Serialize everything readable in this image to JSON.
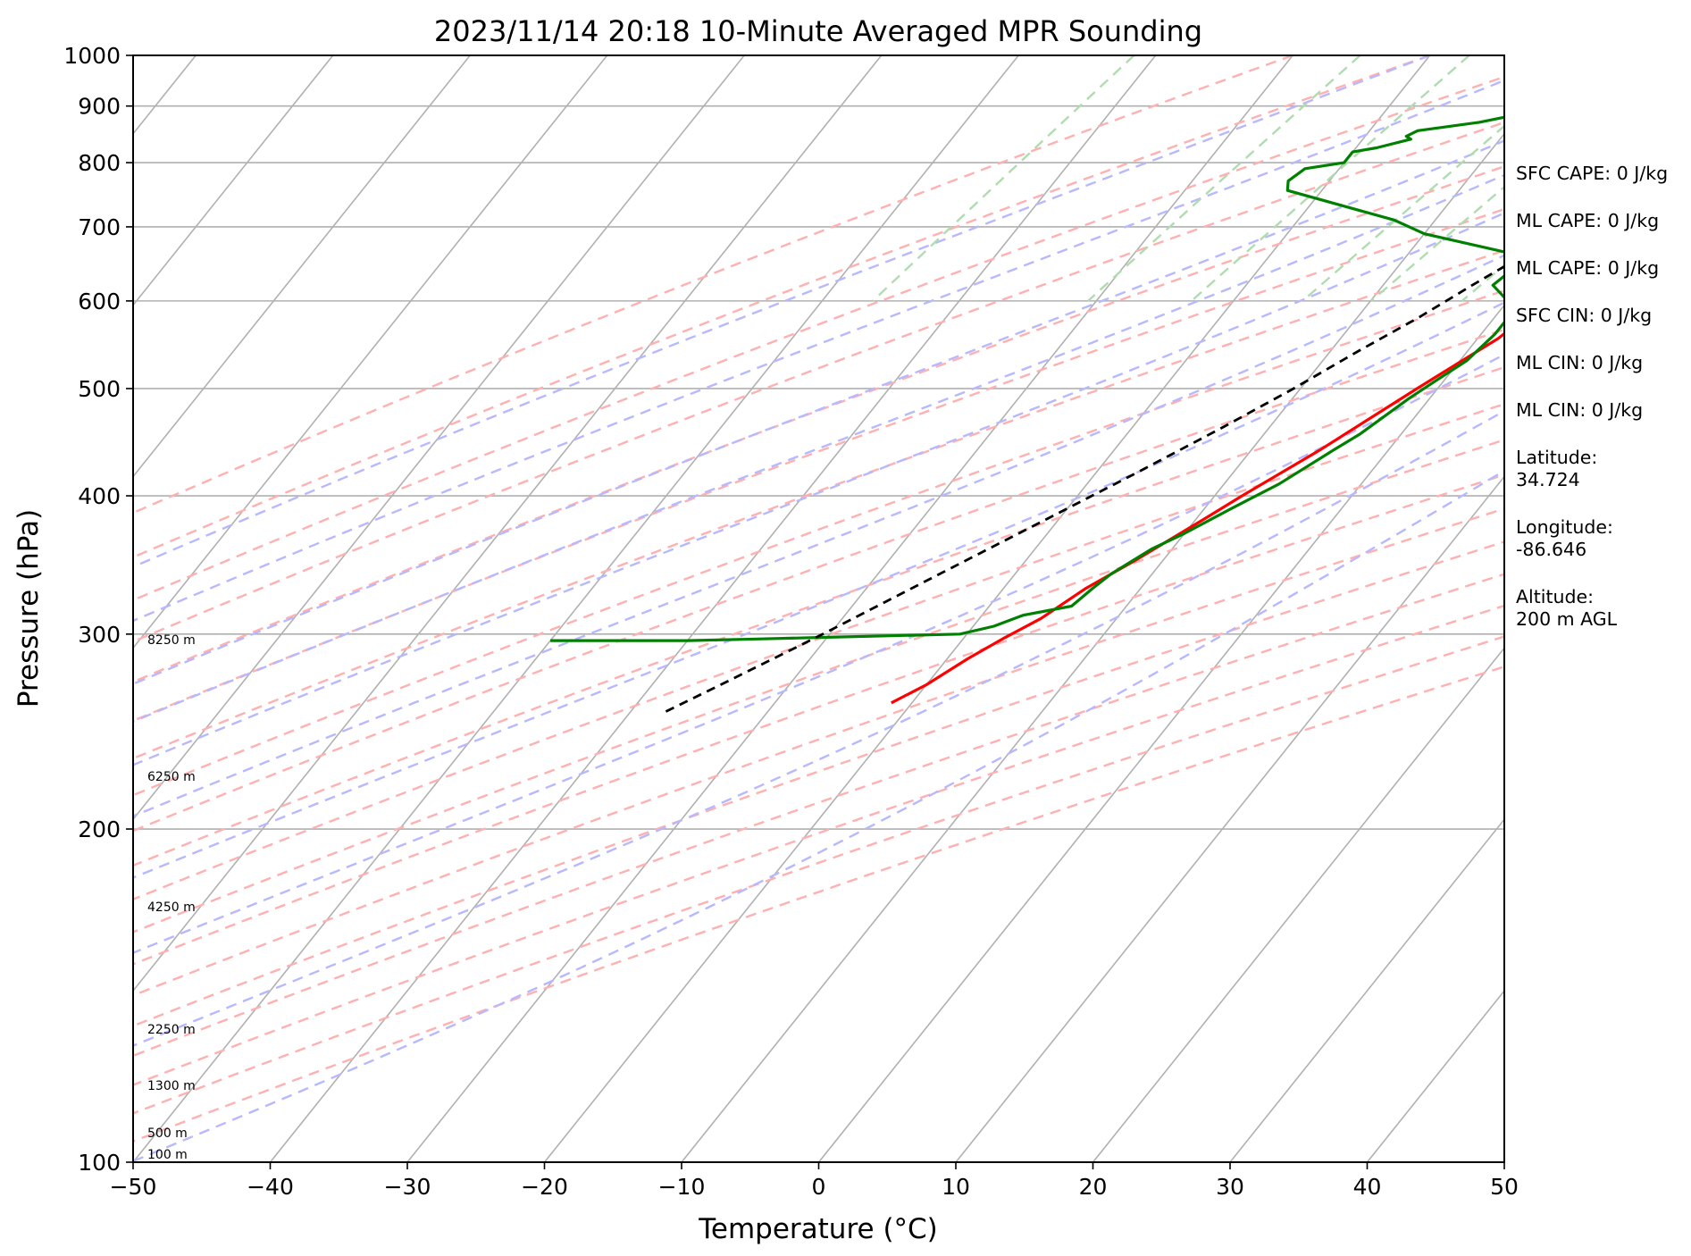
{
  "chart_data": {
    "type": "line",
    "title": "2023/11/14 20:18 10-Minute Averaged MPR Sounding",
    "xlabel": "Temperature (°C)",
    "ylabel": "Pressure (hPa)",
    "xlim": [
      -50,
      50
    ],
    "ylim": [
      1000,
      100
    ],
    "y_scale": "log",
    "skew": "skew-T",
    "grid": true,
    "x_ticks": [
      "−50",
      "−40",
      "−30",
      "−20",
      "−10",
      "0",
      "10",
      "20",
      "30",
      "40",
      "50"
    ],
    "y_ticks": [
      "100",
      "200",
      "300",
      "400",
      "500",
      "600",
      "700",
      "800",
      "900",
      "1000"
    ],
    "height_labels": [
      "8250 m",
      "6250 m",
      "4250 m",
      "2250 m",
      "1300 m",
      "500 m",
      "100 m"
    ],
    "series": [
      {
        "role": "temperature",
        "color": "#ff0000",
        "points": [
          [
            1000,
            20.0
          ],
          [
            990,
            17.5
          ],
          [
            975,
            15.5
          ],
          [
            955,
            14.0
          ],
          [
            930,
            13.5
          ],
          [
            905,
            14.0
          ],
          [
            880,
            14.0
          ],
          [
            860,
            14.0
          ],
          [
            835,
            13.5
          ],
          [
            820,
            13.2
          ],
          [
            795,
            13.0
          ],
          [
            760,
            11.5
          ],
          [
            725,
            10.0
          ],
          [
            695,
            8.5
          ],
          [
            675,
            8.0
          ],
          [
            650,
            6.0
          ],
          [
            615,
            4.0
          ],
          [
            590,
            2.5
          ],
          [
            555,
            1.5
          ],
          [
            500,
            -1.5
          ],
          [
            440,
            -5.0
          ],
          [
            400,
            -8.0
          ],
          [
            380,
            -9.5
          ],
          [
            350,
            -12.0
          ],
          [
            330,
            -14.0
          ],
          [
            310,
            -15.5
          ],
          [
            298,
            -17.0
          ],
          [
            285,
            -18.5
          ],
          [
            270,
            -20.0
          ],
          [
            260,
            -21.5
          ]
        ]
      },
      {
        "role": "dewpoint",
        "color": "#008000",
        "points": [
          [
            1000,
            1.5
          ],
          [
            998,
            -2.0
          ],
          [
            990,
            -3.5
          ],
          [
            980,
            -4.0
          ],
          [
            970,
            -4.5
          ],
          [
            965,
            -3.5
          ],
          [
            955,
            -4.0
          ],
          [
            935,
            -3.0
          ],
          [
            925,
            -4.5
          ],
          [
            915,
            -5.0
          ],
          [
            903,
            -7.5
          ],
          [
            885,
            -10.0
          ],
          [
            870,
            -12.5
          ],
          [
            855,
            -16.5
          ],
          [
            845,
            -17.0
          ],
          [
            840,
            -16.5
          ],
          [
            825,
            -18.5
          ],
          [
            818,
            -20.0
          ],
          [
            800,
            -20.0
          ],
          [
            790,
            -22.5
          ],
          [
            770,
            -23.0
          ],
          [
            755,
            -22.5
          ],
          [
            710,
            -13.0
          ],
          [
            690,
            -10.0
          ],
          [
            655,
            -0.5
          ],
          [
            640,
            -1.5
          ],
          [
            620,
            -2.0
          ],
          [
            600,
            0.0
          ],
          [
            585,
            1.0
          ],
          [
            560,
            1.0
          ],
          [
            530,
            0.5
          ],
          [
            510,
            -0.5
          ],
          [
            490,
            -1.5
          ],
          [
            455,
            -3.0
          ],
          [
            440,
            -4.0
          ],
          [
            410,
            -6.0
          ],
          [
            390,
            -8.0
          ],
          [
            370,
            -10.0
          ],
          [
            358,
            -11.5
          ],
          [
            340,
            -13.0
          ],
          [
            330,
            -13.5
          ],
          [
            318,
            -14.0
          ],
          [
            312,
            -17.0
          ],
          [
            305,
            -18.5
          ],
          [
            300,
            -20.5
          ],
          [
            298,
            -30.0
          ],
          [
            297,
            -35.0
          ],
          [
            296,
            -40.0
          ],
          [
            296,
            -45.0
          ],
          [
            296,
            -50.0
          ]
        ]
      },
      {
        "role": "parcel",
        "color": "#000000",
        "style": "dashed",
        "points": [
          [
            1000,
            21.0
          ],
          [
            950,
            18.0
          ],
          [
            900,
            15.5
          ],
          [
            850,
            12.0
          ],
          [
            800,
            8.5
          ],
          [
            770,
            5.5
          ],
          [
            745,
            3.5
          ],
          [
            720,
            2.5
          ],
          [
            660,
            -1.5
          ],
          [
            620,
            -3.5
          ],
          [
            580,
            -5.5
          ],
          [
            540,
            -8.0
          ],
          [
            500,
            -10.5
          ],
          [
            460,
            -13.5
          ],
          [
            420,
            -17.0
          ],
          [
            380,
            -21.0
          ],
          [
            340,
            -25.5
          ],
          [
            300,
            -30.5
          ],
          [
            270,
            -35.0
          ],
          [
            255,
            -37.5
          ]
        ]
      }
    ],
    "dry_adiabats_C": [
      -30,
      -20,
      -10,
      0,
      10,
      20,
      30,
      40,
      50,
      60,
      70,
      80,
      90,
      100,
      110,
      120,
      130,
      140,
      150
    ],
    "moist_adiabats_C": [
      -20,
      -10,
      0,
      5,
      10,
      15,
      20,
      25,
      30,
      35
    ],
    "mixing_ratio_lines_gkg": [
      0.1,
      0.5,
      1,
      2,
      3,
      5,
      8,
      12,
      16
    ],
    "info": [
      "SFC CAPE: 0 J/kg",
      "ML CAPE: 0 J/kg",
      "ML CAPE: 0 J/kg",
      "SFC CIN: 0 J/kg",
      "ML CIN: 0 J/kg",
      "ML CIN: 0 J/kg",
      "Latitude:\n34.724",
      "Longitude:\n-86.646",
      "Altitude:\n200 m AGL"
    ]
  }
}
